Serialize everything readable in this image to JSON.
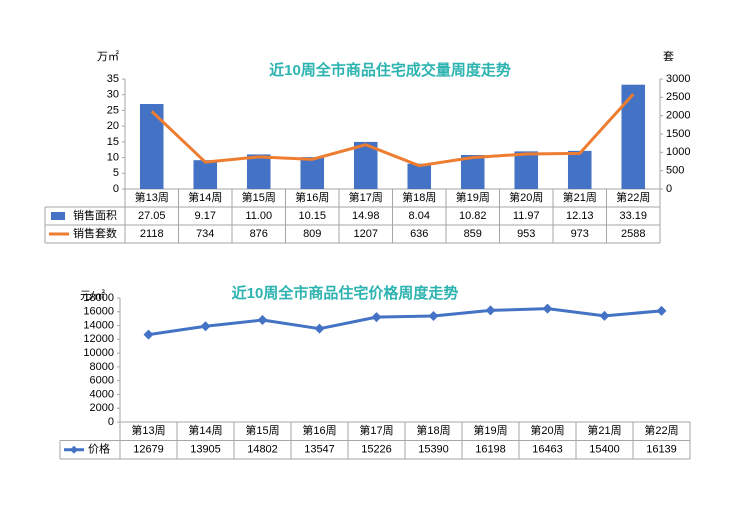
{
  "chart_data": [
    {
      "type": "bar",
      "title": "近10周全市商品住宅成交量周度走势",
      "y_label": "万㎡",
      "y2_label": "套",
      "categories": [
        "第13周",
        "第14周",
        "第15周",
        "第16周",
        "第17周",
        "第18周",
        "第19周",
        "第20周",
        "第21周",
        "第22周"
      ],
      "series": [
        {
          "name": "销售面积",
          "color": "#4472c4",
          "values": [
            27.05,
            9.17,
            11.0,
            10.15,
            14.98,
            8.04,
            10.82,
            11.97,
            12.13,
            33.19
          ],
          "value_labels": [
            "27.05",
            "9.17",
            "11.00",
            "10.15",
            "14.98",
            "8.04",
            "10.82",
            "11.97",
            "12.13",
            "33.19"
          ]
        },
        {
          "name": "销售套数",
          "type": "line",
          "axis": "y2",
          "color": "#ed7d31",
          "values": [
            2118,
            734,
            876,
            809,
            1207,
            636,
            859,
            953,
            973,
            2588
          ]
        }
      ],
      "ylim": [
        0,
        35
      ],
      "yticks": [
        0,
        5,
        10,
        15,
        20,
        25,
        30,
        35
      ],
      "y2lim": [
        0,
        3000
      ],
      "y2ticks": [
        0,
        500,
        1000,
        1500,
        2000,
        2500,
        3000
      ],
      "grid": false
    },
    {
      "type": "line",
      "title": "近10周全市商品住宅价格周度走势",
      "y_label": "元/㎡",
      "categories": [
        "第13周",
        "第14周",
        "第15周",
        "第16周",
        "第17周",
        "第18周",
        "第19周",
        "第20周",
        "第21周",
        "第22周"
      ],
      "series": [
        {
          "name": "价格",
          "color": "#4472c4",
          "values": [
            12679,
            13905,
            14802,
            13547,
            15226,
            15390,
            16198,
            16463,
            15400,
            16139
          ]
        }
      ],
      "ylim": [
        0,
        18000
      ],
      "yticks": [
        0,
        2000,
        4000,
        6000,
        8000,
        10000,
        12000,
        14000,
        16000,
        18000
      ],
      "grid": false
    }
  ]
}
